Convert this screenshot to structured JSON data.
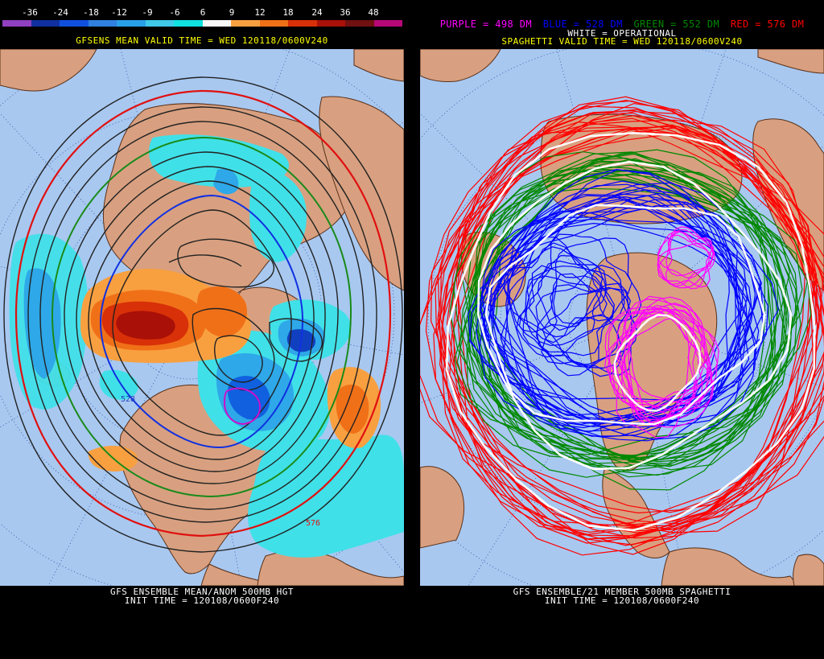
{
  "left_panel": {
    "scale": {
      "labels": [
        "-36",
        "-24",
        "-18",
        "-12",
        "-9",
        "-6",
        "6",
        "9",
        "12",
        "18",
        "24",
        "36",
        "48"
      ],
      "colors": [
        "#9040c0",
        "#1030a0",
        "#1050e0",
        "#2f80e0",
        "#28a0e8",
        "#40c8e8",
        "#10e0e0",
        "#f8f8f8",
        "#f8a040",
        "#f07018",
        "#d83008",
        "#a81008",
        "#701010",
        "#b80878"
      ]
    },
    "valid_time": "GFSENS MEAN VALID TIME = WED 120118/0600V240",
    "contour_labels": [
      "528",
      "576"
    ],
    "footer_line1": "GFS ENSEMBLE MEAN/ANOM 500MB HGT",
    "footer_line2": "INIT TIME = 120108/0600F240"
  },
  "right_panel": {
    "legend": [
      {
        "text": "PURPLE = 498 DM",
        "color": "#ff00ff"
      },
      {
        "text": "BLUE = 528 DM",
        "color": "#0000ff"
      },
      {
        "text": "GREEN = 552 DM",
        "color": "#008800"
      },
      {
        "text": "RED = 576 DM",
        "color": "#ff0000"
      }
    ],
    "operational_label": "WHITE = OPERATIONAL",
    "valid_time": "SPAGHETTI VALID TIME = WED 120118/0600V240",
    "footer_line1": "GFS ENSEMBLE/21 MEMBER 500MB SPAGHETTI",
    "footer_line2": "INIT TIME = 120108/0600F240"
  },
  "map_colors": {
    "ocean": "#a8c8f0",
    "land": "#d8a080",
    "coast": "#5a3018"
  }
}
